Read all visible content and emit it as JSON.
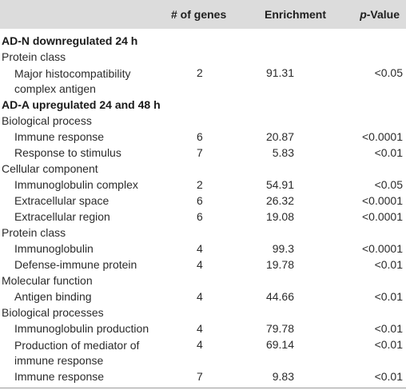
{
  "table": {
    "headers": {
      "term": "",
      "genes": "# of genes",
      "enrichment": "Enrichment",
      "pvalue": "p-Value"
    },
    "rows": [
      {
        "kind": "section",
        "term": "AD-N downregulated 24 h"
      },
      {
        "kind": "category",
        "term": "Protein class"
      },
      {
        "kind": "item",
        "term": "Major histocompatibility complex antigen",
        "genes": "2",
        "enrichment": "91.31",
        "pvalue": "<0.05"
      },
      {
        "kind": "section",
        "term": "AD-A upregulated 24 and 48 h"
      },
      {
        "kind": "category",
        "term": "Biological process"
      },
      {
        "kind": "item",
        "term": "Immune response",
        "genes": "6",
        "enrichment": "20.87",
        "pvalue": "<0.0001"
      },
      {
        "kind": "item",
        "term": "Response to stimulus",
        "genes": "7",
        "enrichment": "5.83",
        "pvalue": "<0.01"
      },
      {
        "kind": "category",
        "term": "Cellular component"
      },
      {
        "kind": "item",
        "term": "Immunoglobulin complex",
        "genes": "2",
        "enrichment": "54.91",
        "pvalue": "<0.05"
      },
      {
        "kind": "item",
        "term": "Extracellular space",
        "genes": "6",
        "enrichment": "26.32",
        "pvalue": "<0.0001"
      },
      {
        "kind": "item",
        "term": "Extracellular region",
        "genes": "6",
        "enrichment": "19.08",
        "pvalue": "<0.0001"
      },
      {
        "kind": "category",
        "term": "Protein class"
      },
      {
        "kind": "item",
        "term": "Immunoglobulin",
        "genes": "4",
        "enrichment": "99.3",
        "pvalue": "<0.0001"
      },
      {
        "kind": "item",
        "term": "Defense-immune protein",
        "genes": "4",
        "enrichment": "19.78",
        "pvalue": "<0.01"
      },
      {
        "kind": "category",
        "term": "Molecular function"
      },
      {
        "kind": "item",
        "term": "Antigen binding",
        "genes": "4",
        "enrichment": "44.66",
        "pvalue": "<0.01"
      },
      {
        "kind": "category",
        "term": "Biological processes"
      },
      {
        "kind": "item",
        "term": "Immunoglobulin production",
        "genes": "4",
        "enrichment": "79.78",
        "pvalue": "<0.01"
      },
      {
        "kind": "item",
        "term": "Production of mediator of immune response",
        "genes": "4",
        "enrichment": "69.14",
        "pvalue": "<0.01"
      },
      {
        "kind": "item",
        "term": "Immune response",
        "genes": "7",
        "enrichment": "9.83",
        "pvalue": "<0.01"
      }
    ]
  }
}
